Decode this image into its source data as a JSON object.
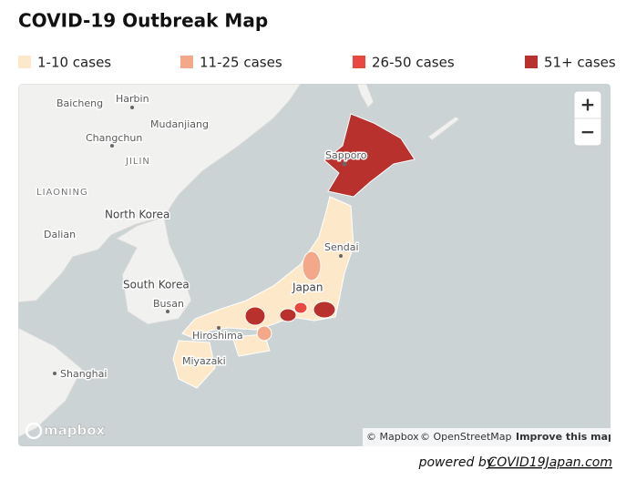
{
  "header": {
    "title": "COVID-19 Outbreak Map"
  },
  "legend": [
    {
      "label": "1-10 cases",
      "color": "#fde9c9"
    },
    {
      "label": "11-25 cases",
      "color": "#f4a88a"
    },
    {
      "label": "26-50 cases",
      "color": "#e8483f"
    },
    {
      "label": "51+ cases",
      "color": "#b8312c"
    }
  ],
  "map": {
    "labels": [
      "Harbin",
      "Baicheng",
      "Mudanjiang",
      "Changchun",
      "JILIN",
      "LIAONING",
      "North Korea",
      "Dalian",
      "South Korea",
      "Busan",
      "Hiroshima",
      "Miyazaki",
      "Shanghai",
      "Sapporo",
      "Sendai",
      "Japan"
    ],
    "zoom_in": "+",
    "zoom_out": "−",
    "logo": "mapbox",
    "attribution": [
      "© Mapbox",
      "© OpenStreetMap",
      "Improve this map"
    ]
  },
  "footer": {
    "prefix": "powered by",
    "link": "COVID19Japan.com"
  }
}
